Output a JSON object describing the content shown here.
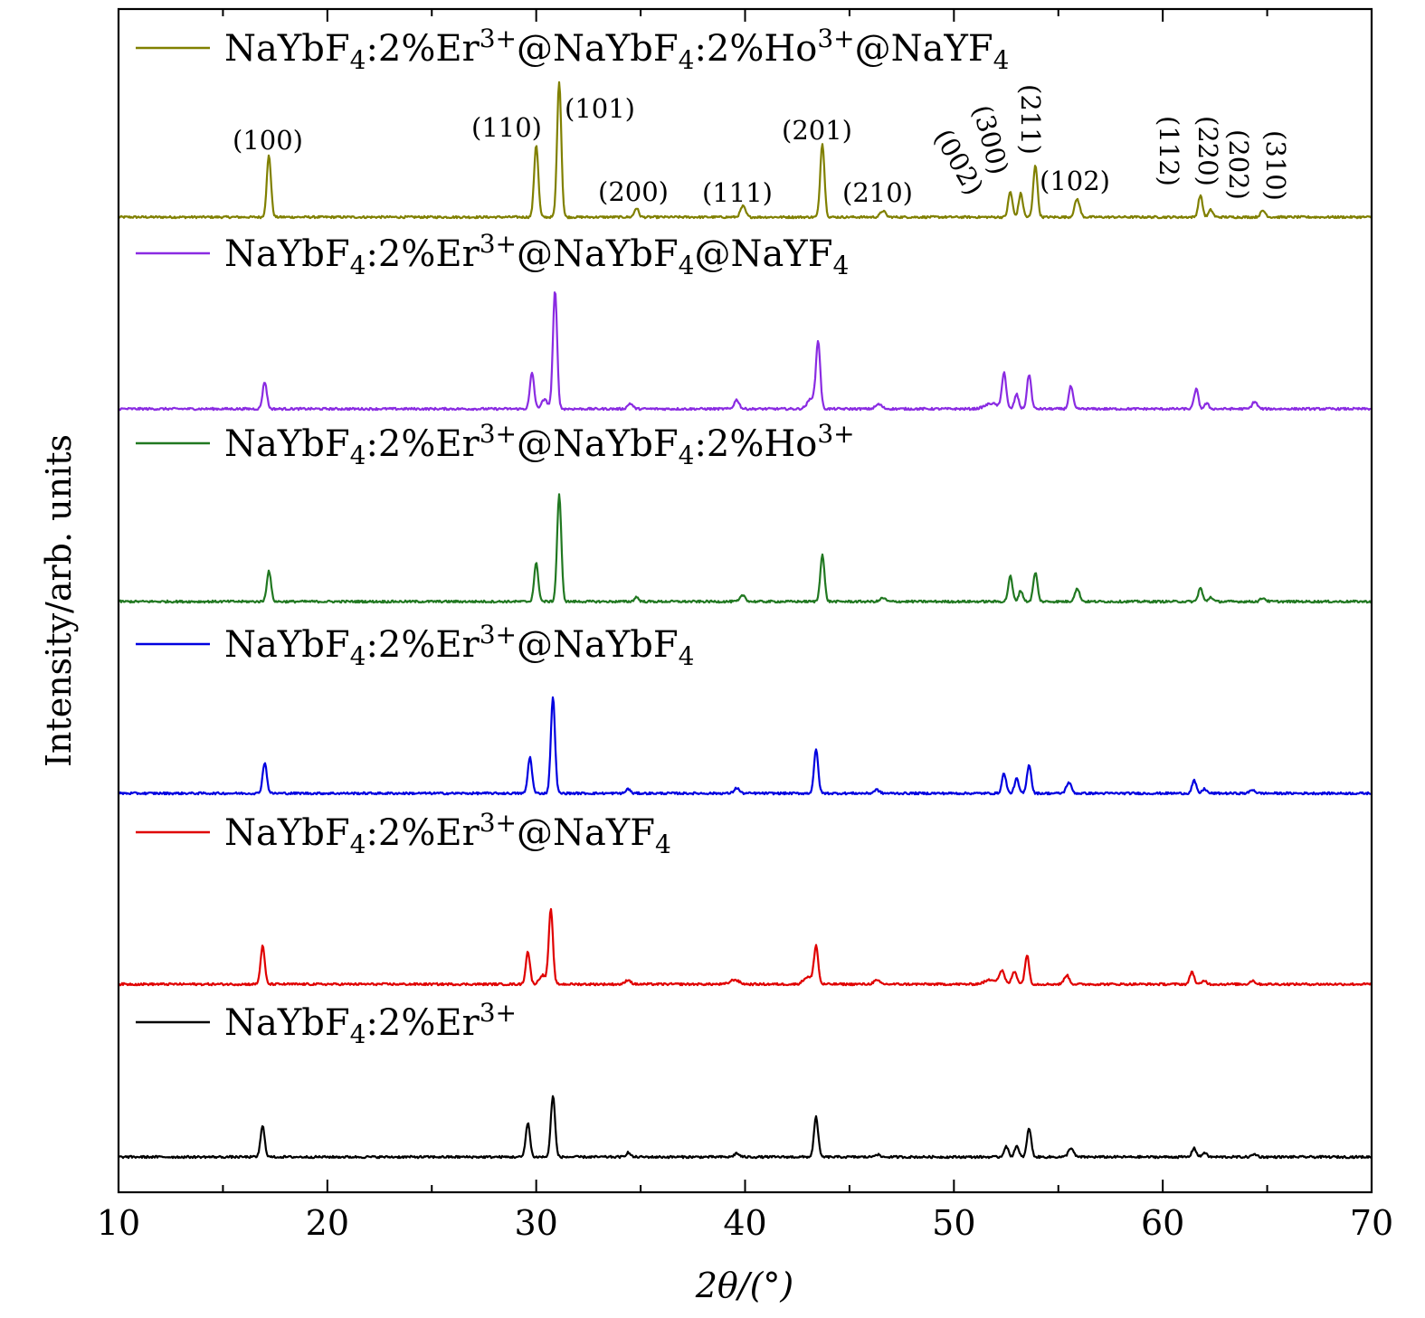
{
  "chart_data": {
    "type": "line",
    "title": "",
    "xlabel": "2θ/(°)",
    "ylabel": "Intensity/arb. units",
    "xlim": [
      10,
      70
    ],
    "xticks": [
      "10",
      "20",
      "30",
      "40",
      "50",
      "60",
      "70"
    ],
    "grid": false,
    "legend_placement": "left, above each curve",
    "series": [
      {
        "name": "NaYbF4:2%Er3+@NaYbF4:2%Ho3+@NaYF4",
        "legend_parts": [
          [
            "NaYbF",
            "n"
          ],
          [
            "4",
            "sub"
          ],
          [
            ":2%Er",
            "n"
          ],
          [
            "3+",
            "sup"
          ],
          [
            "@NaYbF",
            "n"
          ],
          [
            "4",
            "sub"
          ],
          [
            ":2%Ho",
            "n"
          ],
          [
            "3+",
            "sup"
          ],
          [
            "@NaYF",
            "n"
          ],
          [
            "4",
            "sub"
          ]
        ],
        "color": "#808000",
        "peaks": [
          {
            "x": 17.2,
            "h": 68,
            "w": 0.1
          },
          {
            "x": 30.0,
            "h": 80,
            "w": 0.1
          },
          {
            "x": 31.1,
            "h": 150,
            "w": 0.1
          },
          {
            "x": 34.8,
            "h": 10,
            "w": 0.1
          },
          {
            "x": 39.9,
            "h": 12,
            "w": 0.12
          },
          {
            "x": 43.7,
            "h": 82,
            "w": 0.1
          },
          {
            "x": 46.6,
            "h": 7,
            "w": 0.12
          },
          {
            "x": 52.7,
            "h": 28,
            "w": 0.1
          },
          {
            "x": 53.2,
            "h": 26,
            "w": 0.1
          },
          {
            "x": 53.9,
            "h": 58,
            "w": 0.1
          },
          {
            "x": 55.9,
            "h": 20,
            "w": 0.12
          },
          {
            "x": 61.8,
            "h": 24,
            "w": 0.1
          },
          {
            "x": 62.3,
            "h": 8,
            "w": 0.1
          },
          {
            "x": 64.8,
            "h": 7,
            "w": 0.12
          }
        ]
      },
      {
        "name": "NaYbF4:2%Er3+@NaYbF4@NaYF4",
        "legend_parts": [
          [
            "NaYbF",
            "n"
          ],
          [
            "4",
            "sub"
          ],
          [
            ":2%Er",
            "n"
          ],
          [
            "3+",
            "sup"
          ],
          [
            "@NaYbF",
            "n"
          ],
          [
            "4",
            "sub"
          ],
          [
            "@NaYF",
            "n"
          ],
          [
            "4",
            "sub"
          ]
        ],
        "color": "#8A2BE2",
        "peaks": [
          {
            "x": 17.0,
            "h": 30,
            "w": 0.1
          },
          {
            "x": 29.8,
            "h": 40,
            "w": 0.1
          },
          {
            "x": 30.4,
            "h": 10,
            "w": 0.15
          },
          {
            "x": 30.9,
            "h": 130,
            "w": 0.1
          },
          {
            "x": 34.5,
            "h": 6,
            "w": 0.12
          },
          {
            "x": 39.6,
            "h": 10,
            "w": 0.12
          },
          {
            "x": 43.2,
            "h": 12,
            "w": 0.2
          },
          {
            "x": 43.5,
            "h": 72,
            "w": 0.1
          },
          {
            "x": 46.4,
            "h": 5,
            "w": 0.15
          },
          {
            "x": 51.8,
            "h": 6,
            "w": 0.3
          },
          {
            "x": 52.4,
            "h": 40,
            "w": 0.1
          },
          {
            "x": 53.0,
            "h": 16,
            "w": 0.1
          },
          {
            "x": 53.6,
            "h": 38,
            "w": 0.1
          },
          {
            "x": 55.6,
            "h": 25,
            "w": 0.1
          },
          {
            "x": 61.6,
            "h": 22,
            "w": 0.1
          },
          {
            "x": 62.1,
            "h": 6,
            "w": 0.1
          },
          {
            "x": 64.4,
            "h": 8,
            "w": 0.12
          }
        ]
      },
      {
        "name": "NaYbF4:2%Er3+@NaYbF4:2%Ho3+",
        "legend_parts": [
          [
            "NaYbF",
            "n"
          ],
          [
            "4",
            "sub"
          ],
          [
            ":2%Er",
            "n"
          ],
          [
            "3+",
            "sup"
          ],
          [
            "@NaYbF",
            "n"
          ],
          [
            "4",
            "sub"
          ],
          [
            ":2%Ho",
            "n"
          ],
          [
            "3+",
            "sup"
          ]
        ],
        "color": "#217821",
        "peaks": [
          {
            "x": 17.2,
            "h": 34,
            "w": 0.1
          },
          {
            "x": 30.0,
            "h": 42,
            "w": 0.1
          },
          {
            "x": 31.1,
            "h": 118,
            "w": 0.1
          },
          {
            "x": 34.8,
            "h": 5,
            "w": 0.1
          },
          {
            "x": 39.9,
            "h": 7,
            "w": 0.12
          },
          {
            "x": 43.7,
            "h": 52,
            "w": 0.1
          },
          {
            "x": 46.6,
            "h": 4,
            "w": 0.12
          },
          {
            "x": 52.7,
            "h": 28,
            "w": 0.1
          },
          {
            "x": 53.2,
            "h": 12,
            "w": 0.1
          },
          {
            "x": 53.9,
            "h": 32,
            "w": 0.1
          },
          {
            "x": 55.9,
            "h": 14,
            "w": 0.12
          },
          {
            "x": 61.8,
            "h": 15,
            "w": 0.1
          },
          {
            "x": 62.3,
            "h": 5,
            "w": 0.1
          },
          {
            "x": 64.8,
            "h": 4,
            "w": 0.12
          }
        ]
      },
      {
        "name": "NaYbF4:2%Er3+@NaYbF4",
        "legend_parts": [
          [
            "NaYbF",
            "n"
          ],
          [
            "4",
            "sub"
          ],
          [
            ":2%Er",
            "n"
          ],
          [
            "3+",
            "sup"
          ],
          [
            "@NaYbF",
            "n"
          ],
          [
            "4",
            "sub"
          ]
        ],
        "color": "#0000E0",
        "peaks": [
          {
            "x": 17.0,
            "h": 34,
            "w": 0.1
          },
          {
            "x": 29.7,
            "h": 40,
            "w": 0.1
          },
          {
            "x": 30.8,
            "h": 106,
            "w": 0.1
          },
          {
            "x": 34.4,
            "h": 5,
            "w": 0.1
          },
          {
            "x": 39.6,
            "h": 6,
            "w": 0.12
          },
          {
            "x": 43.4,
            "h": 48,
            "w": 0.1
          },
          {
            "x": 46.3,
            "h": 4,
            "w": 0.12
          },
          {
            "x": 52.4,
            "h": 22,
            "w": 0.1
          },
          {
            "x": 53.0,
            "h": 16,
            "w": 0.1
          },
          {
            "x": 53.6,
            "h": 32,
            "w": 0.1
          },
          {
            "x": 55.5,
            "h": 12,
            "w": 0.12
          },
          {
            "x": 61.5,
            "h": 14,
            "w": 0.1
          },
          {
            "x": 62.0,
            "h": 5,
            "w": 0.1
          },
          {
            "x": 64.3,
            "h": 4,
            "w": 0.12
          }
        ]
      },
      {
        "name": "NaYbF4:2%Er3+@NaYF4",
        "legend_parts": [
          [
            "NaYbF",
            "n"
          ],
          [
            "4",
            "sub"
          ],
          [
            ":2%Er",
            "n"
          ],
          [
            "3+",
            "sup"
          ],
          [
            "@NaYF",
            "n"
          ],
          [
            "4",
            "sub"
          ]
        ],
        "color": "#E00000",
        "peaks": [
          {
            "x": 16.9,
            "h": 42,
            "w": 0.1
          },
          {
            "x": 29.6,
            "h": 36,
            "w": 0.1
          },
          {
            "x": 30.3,
            "h": 10,
            "w": 0.15
          },
          {
            "x": 30.7,
            "h": 82,
            "w": 0.1
          },
          {
            "x": 34.4,
            "h": 5,
            "w": 0.12
          },
          {
            "x": 39.5,
            "h": 5,
            "w": 0.2
          },
          {
            "x": 43.0,
            "h": 8,
            "w": 0.2
          },
          {
            "x": 43.4,
            "h": 42,
            "w": 0.1
          },
          {
            "x": 46.3,
            "h": 4,
            "w": 0.15
          },
          {
            "x": 51.8,
            "h": 5,
            "w": 0.3
          },
          {
            "x": 52.3,
            "h": 14,
            "w": 0.12
          },
          {
            "x": 52.9,
            "h": 14,
            "w": 0.12
          },
          {
            "x": 53.5,
            "h": 32,
            "w": 0.1
          },
          {
            "x": 55.4,
            "h": 10,
            "w": 0.12
          },
          {
            "x": 61.4,
            "h": 14,
            "w": 0.1
          },
          {
            "x": 62.0,
            "h": 4,
            "w": 0.1
          },
          {
            "x": 64.3,
            "h": 4,
            "w": 0.12
          }
        ]
      },
      {
        "name": "NaYbF4:2%Er3+",
        "legend_parts": [
          [
            "NaYbF",
            "n"
          ],
          [
            "4",
            "sub"
          ],
          [
            ":2%Er",
            "n"
          ],
          [
            "3+",
            "sup"
          ]
        ],
        "color": "#000000",
        "peaks": [
          {
            "x": 16.9,
            "h": 34,
            "w": 0.1
          },
          {
            "x": 29.6,
            "h": 38,
            "w": 0.1
          },
          {
            "x": 30.8,
            "h": 68,
            "w": 0.1
          },
          {
            "x": 34.4,
            "h": 5,
            "w": 0.1
          },
          {
            "x": 39.6,
            "h": 4,
            "w": 0.12
          },
          {
            "x": 43.4,
            "h": 44,
            "w": 0.1
          },
          {
            "x": 46.3,
            "h": 3,
            "w": 0.12
          },
          {
            "x": 52.5,
            "h": 12,
            "w": 0.1
          },
          {
            "x": 53.0,
            "h": 12,
            "w": 0.1
          },
          {
            "x": 53.6,
            "h": 32,
            "w": 0.1
          },
          {
            "x": 55.6,
            "h": 10,
            "w": 0.12
          },
          {
            "x": 61.5,
            "h": 10,
            "w": 0.1
          },
          {
            "x": 62.0,
            "h": 5,
            "w": 0.1
          },
          {
            "x": 64.4,
            "h": 3,
            "w": 0.12
          }
        ]
      }
    ],
    "annotations": [
      {
        "text": "(100)",
        "x": 17.2
      },
      {
        "text": "(110)",
        "x": 30.0
      },
      {
        "text": "(101)",
        "x": 31.1
      },
      {
        "text": "(200)",
        "x": 34.8
      },
      {
        "text": "(111)",
        "x": 39.9
      },
      {
        "text": "(201)",
        "x": 43.7
      },
      {
        "text": "(210)",
        "x": 46.6
      },
      {
        "text": "(002)",
        "x": 52.7
      },
      {
        "text": "(300)",
        "x": 53.2
      },
      {
        "text": "(211)",
        "x": 53.9
      },
      {
        "text": "(102)",
        "x": 55.9
      },
      {
        "text": "(112)",
        "x": 61.8
      },
      {
        "text": "(220)",
        "x": 62.3
      },
      {
        "text": "(202)",
        "x": 64.3
      },
      {
        "text": "(310)",
        "x": 64.8
      }
    ]
  }
}
